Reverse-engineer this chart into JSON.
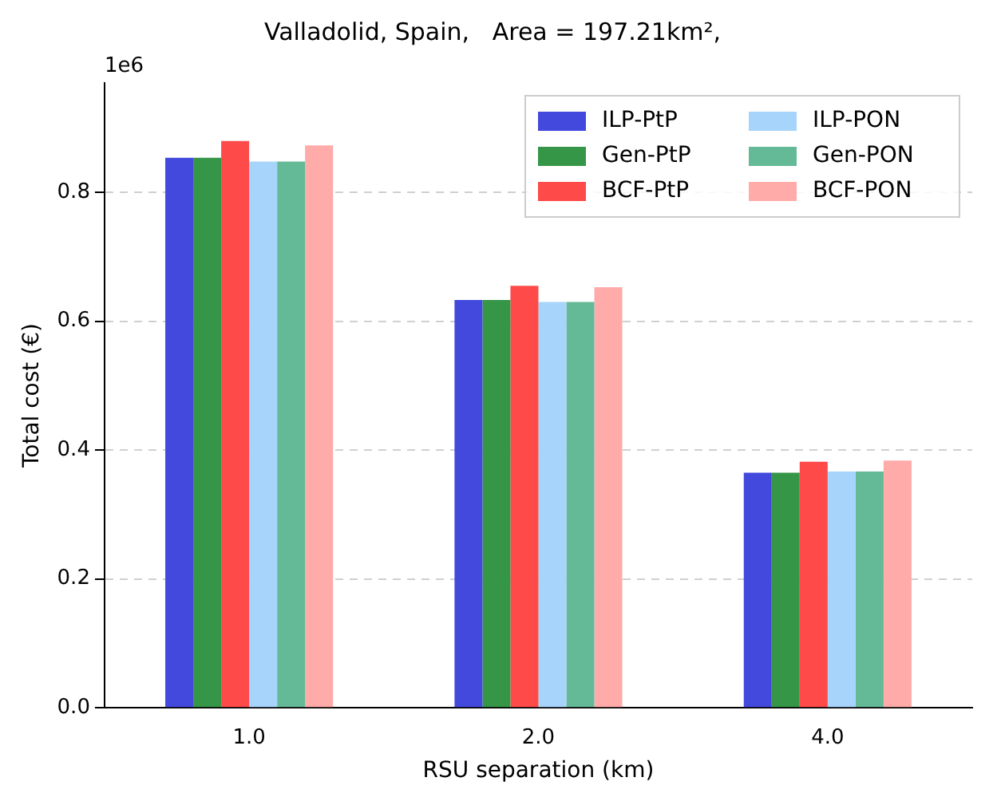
{
  "chart_data": {
    "type": "bar",
    "title": "Valladolid, Spain,   Area = 197.21km²,",
    "xlabel": "RSU separation (km)",
    "ylabel": "Total cost (€)",
    "annotations": [
      "1e6"
    ],
    "categories": [
      "1.0",
      "2.0",
      "4.0"
    ],
    "series": [
      {
        "name": "ILP-PtP",
        "color": "#4349dd",
        "values": [
          0.854,
          0.633,
          0.365
        ]
      },
      {
        "name": "Gen-PtP",
        "color": "#369647",
        "values": [
          0.854,
          0.633,
          0.365
        ]
      },
      {
        "name": "BCF-PtP",
        "color": "#fe4a49",
        "values": [
          0.88,
          0.655,
          0.382
        ]
      },
      {
        "name": "ILP-PON",
        "color": "#a6d4fa",
        "values": [
          0.848,
          0.63,
          0.367
        ]
      },
      {
        "name": "Gen-PON",
        "color": "#64b996",
        "values": [
          0.848,
          0.63,
          0.367
        ]
      },
      {
        "name": "BCF-PON",
        "color": "#feaba9",
        "values": [
          0.873,
          0.653,
          0.384
        ]
      }
    ],
    "ylim": [
      0,
      0.97
    ],
    "yticks": [
      {
        "value": 0,
        "label": "0.0"
      },
      {
        "value": 0.2,
        "label": "0.2"
      },
      {
        "value": 0.4,
        "label": "0.4"
      },
      {
        "value": 0.6,
        "label": "0.6"
      },
      {
        "value": 0.8,
        "label": "0.8"
      }
    ],
    "grid": "y",
    "legend": "top right"
  }
}
